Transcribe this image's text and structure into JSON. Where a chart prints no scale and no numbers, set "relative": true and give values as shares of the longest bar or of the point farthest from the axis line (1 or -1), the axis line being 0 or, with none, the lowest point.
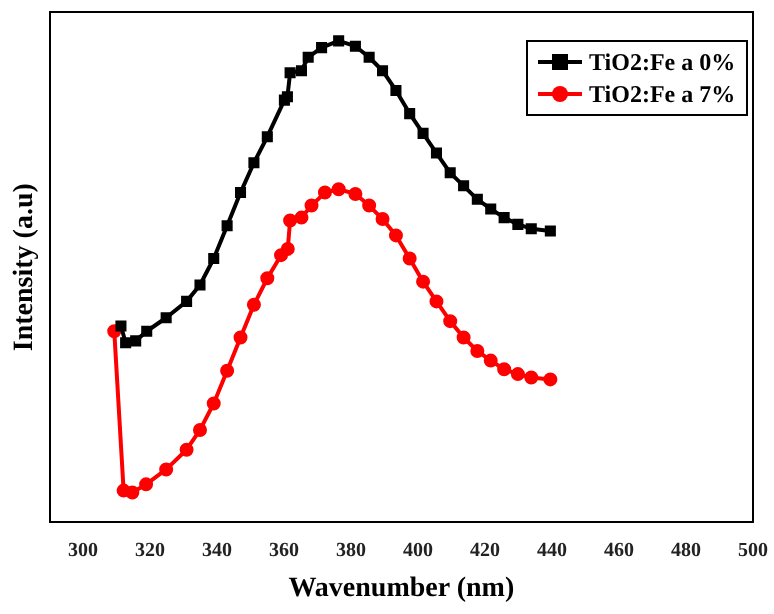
{
  "chart_data": {
    "type": "line",
    "xlabel": "Wavenumber (nm)",
    "ylabel": "Intensity (a.u)",
    "relative": true,
    "xlim": [
      290,
      500
    ],
    "xticks": [
      300,
      320,
      340,
      360,
      380,
      400,
      420,
      440,
      460,
      480,
      500
    ],
    "grid": false,
    "legend": "top right",
    "line_style": "solid",
    "series": [
      {
        "name": "TiO2:Fe a 0%",
        "color": "#000000",
        "marker": "square",
        "x": [
          311.3,
          312.7,
          315.7,
          319,
          324.8,
          330.9,
          334.9,
          339,
          343,
          347,
          351,
          355,
          360.1,
          361,
          361.8,
          365.2,
          367.2,
          371.2,
          376.3,
          381.3,
          385.4,
          389.4,
          393.4,
          397.5,
          401.5,
          405.5,
          409.6,
          413.6,
          417.7,
          421.7,
          425.7,
          429.8,
          433.8,
          439.5
        ],
        "values": [
          0.408,
          0.373,
          0.377,
          0.397,
          0.425,
          0.459,
          0.493,
          0.548,
          0.616,
          0.685,
          0.747,
          0.801,
          0.877,
          0.884,
          0.934,
          0.938,
          0.966,
          0.986,
          1.0,
          0.989,
          0.966,
          0.938,
          0.897,
          0.849,
          0.808,
          0.767,
          0.726,
          0.699,
          0.671,
          0.651,
          0.633,
          0.619,
          0.61,
          0.605
        ]
      },
      {
        "name": "TiO2:Fe a 7%",
        "color": "#ff0000",
        "marker": "circle",
        "x": [
          309.3,
          312.1,
          314.7,
          318.8,
          324.8,
          330.9,
          334.9,
          339,
          343,
          347,
          351,
          355,
          359.1,
          361.1,
          361.8,
          365.2,
          368.2,
          372.2,
          376.3,
          381.3,
          385.4,
          389.4,
          393.4,
          397.5,
          401.5,
          405.5,
          409.6,
          413.6,
          417.7,
          421.7,
          425.7,
          429.8,
          433.8,
          439.5
        ],
        "values": [
          0.397,
          0.066,
          0.062,
          0.079,
          0.11,
          0.151,
          0.192,
          0.247,
          0.315,
          0.384,
          0.452,
          0.507,
          0.555,
          0.568,
          0.627,
          0.633,
          0.658,
          0.685,
          0.692,
          0.682,
          0.658,
          0.63,
          0.596,
          0.548,
          0.5,
          0.459,
          0.418,
          0.384,
          0.356,
          0.336,
          0.318,
          0.308,
          0.301,
          0.297
        ]
      }
    ]
  }
}
